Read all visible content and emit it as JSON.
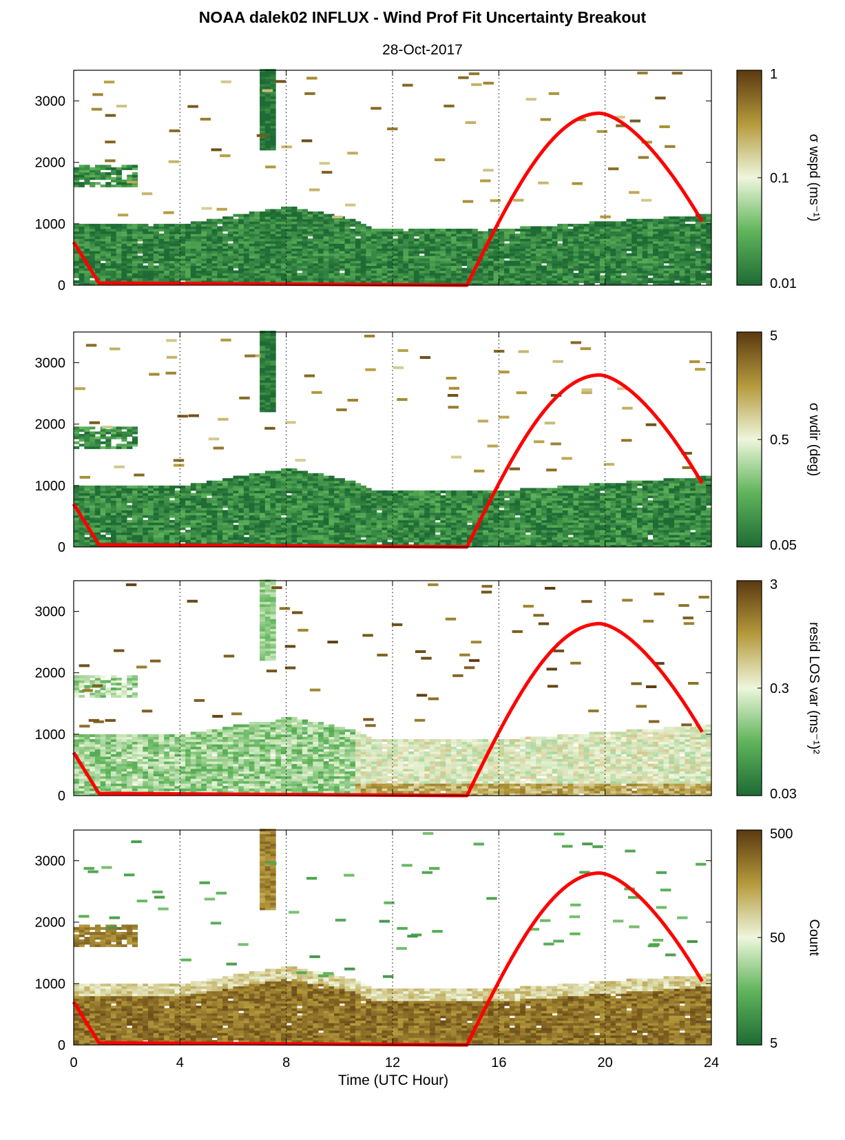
{
  "figure": {
    "title": "NOAA dalek02 INFLUX - Wind Prof Fit Uncertainty Breakout",
    "subtitle": "28-Oct-2017",
    "xlabel": "Time (UTC Hour)"
  },
  "colors": {
    "low": "#1e6b35",
    "mid_low": "#5fb45a",
    "pale": "#e9f3d6",
    "mid_high": "#b59a3c",
    "high": "#5a3a10",
    "sun_line": "#ff0000",
    "grid": "#000000"
  },
  "chart_data": [
    {
      "type": "heatmap",
      "panel": "wspd",
      "colorbar_label": "σ wspd (ms⁻¹)",
      "colorbar_ticks": [
        "1",
        "0.1",
        "0.01"
      ],
      "color_scale": "log",
      "clim": [
        0.01,
        1
      ],
      "xlim": [
        0,
        24
      ],
      "ylim": [
        0,
        3500
      ],
      "xticks": [
        "0",
        "4",
        "8",
        "12",
        "16",
        "20",
        "24"
      ],
      "yticks": [
        "0",
        "1000",
        "2000",
        "3000"
      ],
      "grid_x": [
        4,
        8,
        12,
        16,
        20,
        24
      ],
      "dominant_level": 0.08,
      "sun_curve": {
        "morning_start_height": 700,
        "morning_zero_hour": 1.0,
        "rise_hour": 14.8,
        "peak_hour": 19.8,
        "peak_height": 2800,
        "end_hour": 23.7,
        "end_height": 1000
      }
    },
    {
      "type": "heatmap",
      "panel": "wdir",
      "colorbar_label": "σ wdir (deg)",
      "colorbar_ticks": [
        "5",
        "0.5",
        "0.05"
      ],
      "color_scale": "log",
      "clim": [
        0.05,
        5
      ],
      "xlim": [
        0,
        24
      ],
      "ylim": [
        0,
        3500
      ],
      "xticks": [
        "0",
        "4",
        "8",
        "12",
        "16",
        "20",
        "24"
      ],
      "yticks": [
        "0",
        "1000",
        "2000",
        "3000"
      ],
      "grid_x": [
        4,
        8,
        12,
        16,
        20,
        24
      ],
      "dominant_level": 0.1,
      "sun_curve": {
        "morning_start_height": 700,
        "morning_zero_hour": 1.0,
        "rise_hour": 14.8,
        "peak_hour": 19.8,
        "peak_height": 2800,
        "end_hour": 23.7,
        "end_height": 1000
      }
    },
    {
      "type": "heatmap",
      "panel": "resid",
      "colorbar_label": "resid LOS var (ms⁻¹)²",
      "colorbar_ticks": [
        "3",
        "0.3",
        "0.03"
      ],
      "color_scale": "log",
      "clim": [
        0.03,
        3
      ],
      "xlim": [
        0,
        24
      ],
      "ylim": [
        0,
        3500
      ],
      "xticks": [
        "0",
        "4",
        "8",
        "12",
        "16",
        "20",
        "24"
      ],
      "yticks": [
        "0",
        "1000",
        "2000",
        "3000"
      ],
      "grid_x": [
        4,
        8,
        12,
        16,
        20,
        24
      ],
      "dominant_level": 0.35,
      "sun_curve": {
        "morning_start_height": 700,
        "morning_zero_hour": 1.0,
        "rise_hour": 14.8,
        "peak_hour": 19.8,
        "peak_height": 2800,
        "end_hour": 23.7,
        "end_height": 1000
      }
    },
    {
      "type": "heatmap",
      "panel": "count",
      "colorbar_label": "Count",
      "colorbar_ticks": [
        "500",
        "50",
        "5"
      ],
      "color_scale": "log",
      "clim": [
        0.5,
        500
      ],
      "xlim": [
        0,
        24
      ],
      "ylim": [
        0,
        3500
      ],
      "xticks": [
        "0",
        "4",
        "8",
        "12",
        "16",
        "20",
        "24"
      ],
      "yticks": [
        "0",
        "1000",
        "2000",
        "3000"
      ],
      "grid_x": [
        4,
        8,
        12,
        16,
        20,
        24
      ],
      "dominant_level": 0.85,
      "sun_curve": {
        "morning_start_height": 700,
        "morning_zero_hour": 1.0,
        "rise_hour": 14.8,
        "peak_hour": 19.8,
        "peak_height": 2800,
        "end_hour": 23.7,
        "end_height": 1000
      }
    }
  ]
}
